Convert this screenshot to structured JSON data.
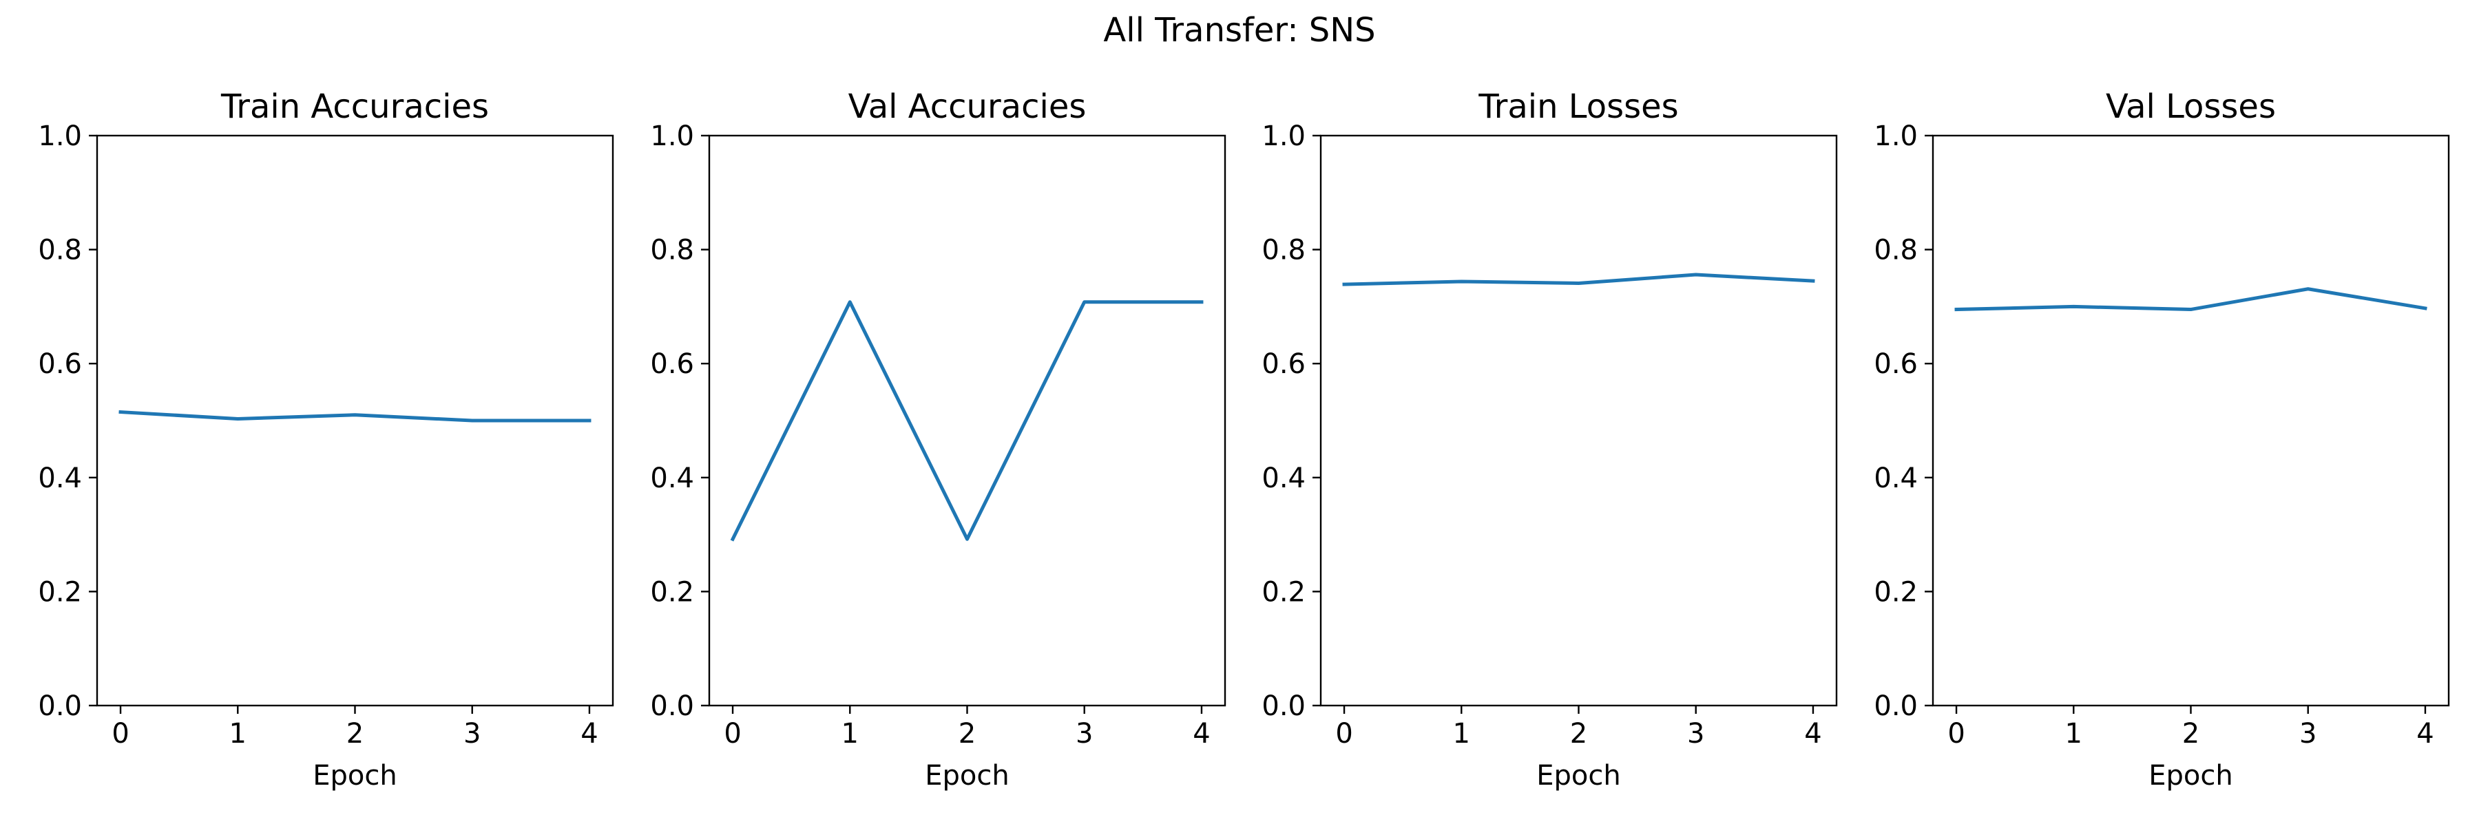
{
  "figure": {
    "title": "All Transfer: SNS"
  },
  "colors": {
    "series": "#1f77b4"
  },
  "chart_data": [
    {
      "type": "line",
      "title": "Train Accuracies",
      "xlabel": "Epoch",
      "ylabel": "",
      "x": [
        0,
        1,
        2,
        3,
        4
      ],
      "series": [
        {
          "values": [
            0.515,
            0.503,
            0.51,
            0.5,
            0.5
          ]
        }
      ],
      "xlim": [
        -0.2,
        4.2
      ],
      "ylim": [
        0.0,
        1.0
      ],
      "xticks": [
        0,
        1,
        2,
        3,
        4
      ],
      "xtick_labels": [
        "0",
        "1",
        "2",
        "3",
        "4"
      ],
      "yticks": [
        0.0,
        0.2,
        0.4,
        0.6,
        0.8,
        1.0
      ],
      "ytick_labels": [
        "0.0",
        "0.2",
        "0.4",
        "0.6",
        "0.8",
        "1.0"
      ],
      "grid": false,
      "legend": "none"
    },
    {
      "type": "line",
      "title": "Val Accuracies",
      "xlabel": "Epoch",
      "ylabel": "",
      "x": [
        0,
        1,
        2,
        3,
        4
      ],
      "series": [
        {
          "values": [
            0.292,
            0.708,
            0.292,
            0.708,
            0.708
          ]
        }
      ],
      "xlim": [
        -0.2,
        4.2
      ],
      "ylim": [
        0.0,
        1.0
      ],
      "xticks": [
        0,
        1,
        2,
        3,
        4
      ],
      "xtick_labels": [
        "0",
        "1",
        "2",
        "3",
        "4"
      ],
      "yticks": [
        0.0,
        0.2,
        0.4,
        0.6,
        0.8,
        1.0
      ],
      "ytick_labels": [
        "0.0",
        "0.2",
        "0.4",
        "0.6",
        "0.8",
        "1.0"
      ],
      "grid": false,
      "legend": "none"
    },
    {
      "type": "line",
      "title": "Train Losses",
      "xlabel": "Epoch",
      "ylabel": "",
      "x": [
        0,
        1,
        2,
        3,
        4
      ],
      "series": [
        {
          "values": [
            0.739,
            0.744,
            0.741,
            0.756,
            0.745
          ]
        }
      ],
      "xlim": [
        -0.2,
        4.2
      ],
      "ylim": [
        0.0,
        1.0
      ],
      "xticks": [
        0,
        1,
        2,
        3,
        4
      ],
      "xtick_labels": [
        "0",
        "1",
        "2",
        "3",
        "4"
      ],
      "yticks": [
        0.0,
        0.2,
        0.4,
        0.6,
        0.8,
        1.0
      ],
      "ytick_labels": [
        "0.0",
        "0.2",
        "0.4",
        "0.6",
        "0.8",
        "1.0"
      ],
      "grid": false,
      "legend": "none"
    },
    {
      "type": "line",
      "title": "Val Losses",
      "xlabel": "Epoch",
      "ylabel": "",
      "x": [
        0,
        1,
        2,
        3,
        4
      ],
      "series": [
        {
          "values": [
            0.695,
            0.7,
            0.695,
            0.731,
            0.697
          ]
        }
      ],
      "xlim": [
        -0.2,
        4.2
      ],
      "ylim": [
        0.0,
        1.0
      ],
      "xticks": [
        0,
        1,
        2,
        3,
        4
      ],
      "xtick_labels": [
        "0",
        "1",
        "2",
        "3",
        "4"
      ],
      "yticks": [
        0.0,
        0.2,
        0.4,
        0.6,
        0.8,
        1.0
      ],
      "ytick_labels": [
        "0.0",
        "0.2",
        "0.4",
        "0.6",
        "0.8",
        "1.0"
      ],
      "grid": false,
      "legend": "none"
    }
  ]
}
